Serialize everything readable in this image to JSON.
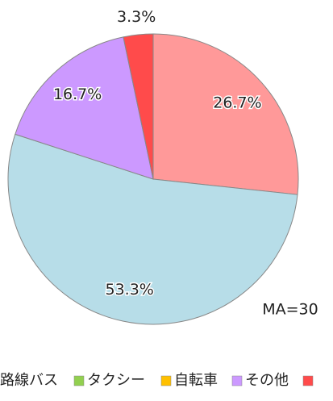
{
  "chart_data": {
    "type": "pie",
    "categories": [
      null,
      "路線バス",
      "タクシー",
      "自転車",
      "その他",
      null
    ],
    "values": [
      26.7,
      53.3,
      0,
      0,
      16.7,
      3.3
    ],
    "value_labels": [
      "26.7%",
      "53.3%",
      null,
      null,
      "16.7%",
      "3.3%"
    ],
    "colors": [
      "#ff9999",
      "#b7dde8",
      "#92d050",
      "#ffc000",
      "#cc99ff",
      "#ff4b4b"
    ],
    "annotation": "MA=30",
    "legend": "bottom"
  }
}
